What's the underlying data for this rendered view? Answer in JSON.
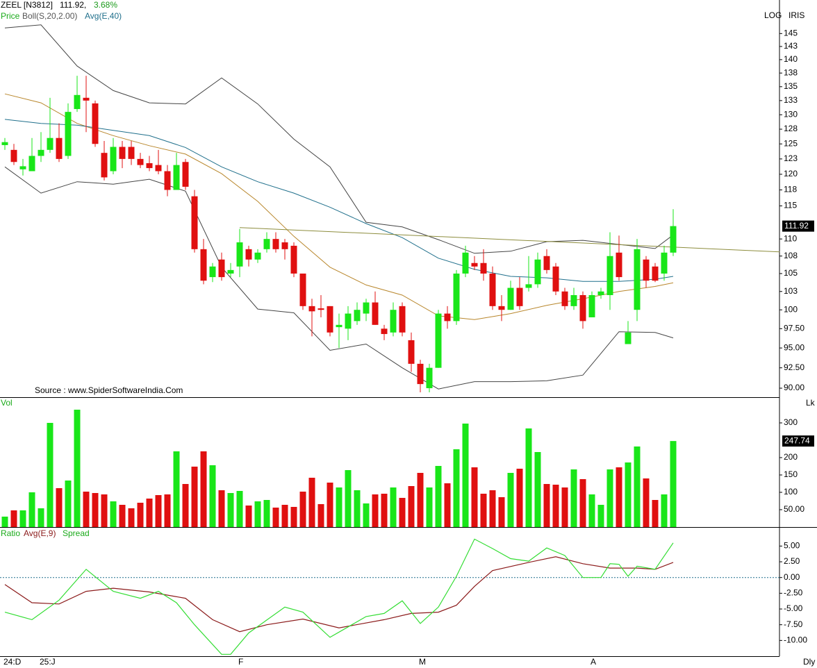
{
  "chart_data": [
    {
      "type": "candlestick",
      "title": "ZEEL [N3812]",
      "price_text": "111.92,",
      "change_text": "3.68%",
      "candle_name": "Price",
      "scale_label": "LOG",
      "scheme_label": "IRIS",
      "log_scale": true,
      "source": "Source : www.SpiderSoftwareIndia.Com",
      "up_color": "#19e619",
      "down_color": "#e01010",
      "categories": [
        "24:D",
        null,
        null,
        null,
        "25:J",
        null,
        null,
        null,
        null,
        null,
        null,
        null,
        null,
        null,
        null,
        null,
        null,
        null,
        null,
        null,
        null,
        null,
        null,
        null,
        null,
        null,
        "F",
        null,
        null,
        null,
        null,
        null,
        null,
        null,
        null,
        null,
        null,
        null,
        null,
        null,
        null,
        null,
        null,
        null,
        null,
        null,
        "M",
        null,
        null,
        null,
        null,
        null,
        null,
        null,
        null,
        null,
        null,
        null,
        null,
        null,
        null,
        null,
        null,
        null,
        null,
        "A",
        null,
        null,
        null,
        null,
        null,
        null,
        null,
        null,
        null
      ],
      "open": [
        124.8,
        124,
        120.8,
        120.5,
        123,
        124,
        126,
        123,
        131,
        133,
        132,
        123.5,
        120.5,
        124.5,
        124.5,
        122.5,
        121.8,
        121.5,
        120.5,
        117.5,
        122,
        116.5,
        108.5,
        104.5,
        107,
        105,
        106,
        108.5,
        107,
        108.5,
        110,
        109.5,
        109,
        105,
        100.5,
        100.2,
        100.5,
        97.7,
        97.5,
        98.5,
        99.5,
        101,
        97.5,
        97,
        100.5,
        96,
        93,
        90,
        92.5,
        99.5,
        98.5,
        105,
        106.5,
        106.5,
        105,
        100.5,
        100,
        103,
        103,
        103.5,
        107.5,
        106,
        102.5,
        100.5,
        102,
        99,
        102,
        102,
        108,
        95.5,
        100,
        107,
        106,
        105,
        108
      ],
      "high": [
        126,
        125,
        122.5,
        126,
        127,
        133,
        128.5,
        132,
        137,
        137,
        132.5,
        125.5,
        126,
        125.5,
        125.5,
        123.5,
        123,
        124,
        121.5,
        123.5,
        122.5,
        117.5,
        110,
        106.5,
        108,
        106.5,
        111.5,
        109,
        108.5,
        111,
        111,
        110,
        109.5,
        105,
        101.5,
        102,
        100.5,
        99.5,
        100.5,
        101,
        101.5,
        102.5,
        98,
        101,
        101,
        97,
        93.5,
        93,
        100,
        100.5,
        105.5,
        109,
        107.5,
        108.5,
        106,
        102,
        104,
        104.5,
        107.5,
        108,
        108.5,
        106.5,
        103,
        103,
        102.5,
        102.5,
        103,
        111,
        110.5,
        98.5,
        110,
        107.5,
        106.5,
        109,
        114.5
      ],
      "low": [
        124,
        121.5,
        119.8,
        120.5,
        122,
        123.5,
        122,
        122.5,
        130.5,
        127,
        124.5,
        119,
        120,
        121,
        121.5,
        121,
        120.5,
        120,
        116.5,
        117.5,
        117.5,
        108,
        103.5,
        103.8,
        104,
        104.5,
        104.5,
        106,
        106.5,
        108,
        108,
        107,
        104.5,
        100,
        96.5,
        99,
        96.5,
        95,
        96,
        98,
        98.5,
        98,
        96,
        96.5,
        96.5,
        92,
        89.5,
        89.5,
        92.5,
        97.5,
        98,
        104.5,
        105.5,
        104,
        100,
        98.5,
        100,
        100,
        102.5,
        103,
        105,
        102,
        100,
        100,
        97.5,
        99,
        101.5,
        100,
        104,
        95.5,
        98.5,
        103,
        103.8,
        104,
        107.5
      ],
      "close": [
        125.3,
        122,
        121.3,
        123,
        124,
        126,
        122.5,
        130.5,
        133.5,
        132.5,
        125,
        119.5,
        124.5,
        122.5,
        122.5,
        121.5,
        121,
        120.5,
        117.5,
        121.5,
        118,
        108.5,
        104,
        106,
        104.5,
        105.5,
        109.5,
        107,
        108,
        110,
        108.5,
        108.5,
        105,
        100.5,
        99.8,
        100,
        97,
        98,
        99.5,
        100,
        101,
        98,
        96.8,
        100,
        97,
        93,
        90.5,
        92.5,
        99.5,
        98.5,
        105,
        108,
        106,
        105,
        100.5,
        100,
        103,
        100.5,
        103.5,
        107,
        105.5,
        102.5,
        100.5,
        102,
        98.5,
        102,
        102.5,
        107.5,
        104.5,
        97,
        108.5,
        104,
        104,
        108,
        111.92
      ],
      "bollinger": {
        "name": "Boll(S,20,2.00)",
        "band_color": "#444444",
        "middle_color": "#b8862b",
        "x": [
          0,
          4,
          8,
          12,
          16,
          20,
          24,
          28,
          32,
          36,
          40,
          44,
          48,
          52,
          56,
          60,
          64,
          68,
          72,
          74
        ],
        "upper": [
          146.1,
          146.7,
          138.8,
          134.3,
          132.1,
          131.9,
          136.6,
          131.9,
          125.8,
          121.2,
          112.5,
          111.8,
          109.9,
          107.9,
          108.2,
          109.6,
          109.8,
          109.2,
          108.6,
          110.6
        ],
        "middle": [
          133.7,
          132.1,
          128.5,
          126.4,
          124.7,
          123.3,
          120.1,
          115.7,
          110.4,
          105.9,
          103.4,
          102.0,
          99.2,
          98.7,
          99.5,
          100.6,
          101.5,
          102.5,
          103.2,
          103.7
        ],
        "lower": [
          121.2,
          117.0,
          118.8,
          118.4,
          119.2,
          117.3,
          105.9,
          100.1,
          99.6,
          94.7,
          95.5,
          92.5,
          89.9,
          90.8,
          90.8,
          90.9,
          91.6,
          97.1,
          97.0,
          96.3
        ]
      },
      "series": [
        {
          "name": "Avg(E,40)",
          "color": "#1f6f8b",
          "x": [
            0,
            4,
            8,
            12,
            16,
            20,
            24,
            28,
            32,
            36,
            40,
            44,
            48,
            52,
            56,
            60,
            64,
            68,
            72,
            74
          ],
          "values": [
            129.2,
            128.5,
            128.2,
            127.3,
            126.4,
            124.4,
            121.2,
            118.8,
            117.0,
            114.8,
            112.3,
            110.2,
            107.2,
            105.6,
            104.6,
            104.4,
            103.9,
            103.9,
            104.2,
            104.6
          ]
        }
      ],
      "trendline": {
        "color": "#8c8c3c",
        "x": [
          26,
          85.8
        ],
        "values": [
          111.7,
          108.1
        ]
      },
      "ylim": [
        89,
        147.5
      ],
      "yticks": [
        145,
        {
          "value": 142.5,
          "label": "143"
        },
        140,
        {
          "value": 137.5,
          "label": "138"
        },
        135,
        {
          "value": 132.5,
          "label": "133"
        },
        130,
        {
          "value": 127.5,
          "label": "128"
        },
        125,
        {
          "value": 122.5,
          "label": "123"
        },
        120,
        {
          "value": 117.5,
          "label": "118"
        },
        115,
        110,
        {
          "value": 107.5,
          "label": "108"
        },
        105,
        {
          "value": 102.5,
          "label": "103"
        },
        100,
        {
          "value": 97.5,
          "label": "97.50"
        },
        {
          "value": 95,
          "label": "95.00"
        },
        {
          "value": 92.5,
          "label": "92.50"
        },
        {
          "value": 90,
          "label": "90.00"
        }
      ]
    },
    {
      "type": "bar",
      "name": "Vol",
      "unit_label": "Lk",
      "up_color": "#19e619",
      "down_color": "#e01010",
      "values": [
        30,
        48,
        48,
        100,
        54,
        300,
        112,
        134,
        338,
        102,
        98,
        94,
        74,
        64,
        54,
        70,
        82,
        92,
        94,
        218,
        124,
        174,
        218,
        178,
        106,
        98,
        104,
        62,
        74,
        78,
        56,
        64,
        58,
        102,
        142,
        66,
        128,
        114,
        164,
        106,
        68,
        94,
        96,
        114,
        84,
        118,
        156,
        114,
        176,
        126,
        224,
        298,
        172,
        96,
        106,
        86,
        156,
        168,
        284,
        216,
        124,
        122,
        114,
        166,
        138,
        94,
        64,
        166,
        172,
        186,
        232,
        140,
        78,
        94,
        247.74
      ],
      "ylim": [
        0,
        370
      ],
      "yticks": [
        {
          "value": 50,
          "label": "50.00"
        },
        100,
        150,
        200,
        300
      ]
    },
    {
      "type": "line",
      "name": "Ratio",
      "zero_line": true,
      "series": [
        {
          "name": "Avg(E,9)",
          "color": "#8b1a1a",
          "x": [
            0,
            3,
            6,
            9,
            12,
            16,
            20,
            23,
            26,
            29,
            33,
            37,
            42,
            45,
            48,
            50,
            52,
            54,
            58,
            61,
            64,
            67,
            70,
            72,
            74
          ],
          "values": [
            -1.1,
            -4.0,
            -4.2,
            -2.2,
            -1.7,
            -2.3,
            -3.3,
            -6.7,
            -8.6,
            -7.5,
            -6.6,
            -8.0,
            -6.7,
            -5.7,
            -5.5,
            -4.4,
            -1.4,
            1.1,
            2.4,
            3.3,
            2.2,
            1.5,
            1.5,
            1.3,
            2.4
          ]
        },
        {
          "name": "Spread",
          "color": "#33dd33",
          "x": [
            0,
            3,
            6,
            9,
            12,
            15,
            17,
            19,
            21,
            24,
            25,
            27,
            31,
            33,
            36,
            40,
            42,
            44,
            46,
            48,
            50,
            52,
            54,
            56,
            58,
            60,
            62,
            64,
            66,
            67,
            68,
            69,
            70,
            72,
            74
          ],
          "values": [
            -5.5,
            -6.7,
            -3.6,
            1.3,
            -2.2,
            -3.3,
            -2.2,
            -4.0,
            -7.5,
            -12.2,
            -12.2,
            -8.8,
            -4.7,
            -5.5,
            -9.5,
            -6.2,
            -5.7,
            -3.7,
            -7.3,
            -4.7,
            0.2,
            6.1,
            4.6,
            3.0,
            2.6,
            4.7,
            3.5,
            0,
            0,
            2.2,
            2.1,
            0.2,
            1.8,
            1.3,
            5.5
          ]
        }
      ],
      "ylim": [
        -12.5,
        7.8
      ],
      "yticks": [
        {
          "value": 5,
          "label": "5.00"
        },
        {
          "value": 2.5,
          "label": "2.50"
        },
        {
          "value": 0,
          "label": "0.00"
        },
        {
          "value": -2.5,
          "label": "-2.50"
        },
        {
          "value": -5,
          "label": "-5.00"
        },
        {
          "value": -7.5,
          "label": "-7.50"
        },
        {
          "value": -10,
          "label": "-10.00"
        }
      ]
    }
  ],
  "period_label": "Dly"
}
